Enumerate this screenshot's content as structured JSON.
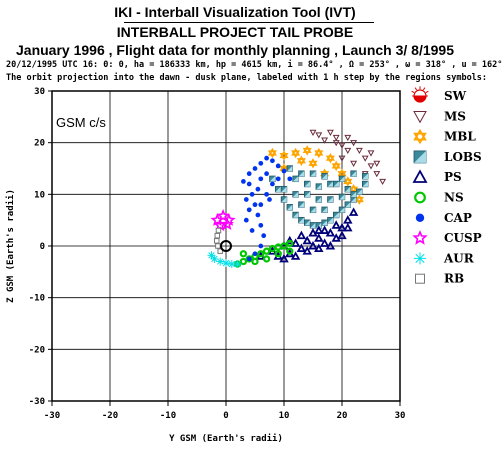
{
  "header": {
    "title": "IKI - Interball Visualization Tool (IVT)",
    "subtitle": "INTERBALL PROJECT TAIL PROBE",
    "plan": "January 1996 ,  Flight data for monthly planning ,   Launch  3/ 8/1995",
    "orbit_info": "20/12/1995 UTC 16: 0: 0, ha = 186333 km, hp =   4615 km, i = 86.4° , Ω = 253° , ω = 318° , u = 162°",
    "description": "The orbit projection into the dawn - dusk plane, labeled with 1 h step by the regions symbols:"
  },
  "colors": {
    "SW": "#e00000",
    "MS": "#6a2a3a",
    "MBL": "#ffa500",
    "LOBS": "#3a8a9a",
    "PS": "#00007a",
    "NS": "#00c800",
    "CAP": "#0033ee",
    "CUSP": "#ff00ff",
    "AUR": "#00e0e8",
    "RB": "#777777"
  },
  "chart_data": {
    "type": "scatter",
    "coord_system_label": "GSM c/s",
    "xlabel": "Y GSM (Earth's radii)",
    "ylabel": "Z GSM (Earth's radii)",
    "xlim": [
      -30,
      30
    ],
    "ylim": [
      -30,
      30
    ],
    "xticks": [
      -30,
      -20,
      -10,
      0,
      10,
      20,
      30
    ],
    "yticks": [
      -30,
      -20,
      -10,
      0,
      10,
      20,
      30
    ],
    "grid": true,
    "legend_position": "right",
    "earth_marker": [
      0,
      0
    ],
    "series": [
      {
        "name": "SW",
        "symbol": "sw-icon",
        "points": []
      },
      {
        "name": "MS",
        "symbol": "triangle-down-icon",
        "points": [
          [
            15,
            22
          ],
          [
            16,
            21.5
          ],
          [
            17,
            20.5
          ],
          [
            18,
            22
          ],
          [
            19,
            21
          ],
          [
            20,
            19.5
          ],
          [
            21,
            18.5
          ],
          [
            22,
            20
          ],
          [
            23,
            18.5
          ],
          [
            24,
            17
          ],
          [
            25,
            15.5
          ],
          [
            26,
            14
          ],
          [
            27,
            12.5
          ],
          [
            26,
            16
          ],
          [
            25,
            18
          ],
          [
            20,
            17
          ],
          [
            22,
            16
          ],
          [
            19,
            20
          ],
          [
            21,
            21
          ],
          [
            24,
            14
          ]
        ]
      },
      {
        "name": "MBL",
        "symbol": "star-of-david-icon",
        "points": [
          [
            8,
            18
          ],
          [
            10,
            17.5
          ],
          [
            12,
            18
          ],
          [
            14,
            18.5
          ],
          [
            16,
            18
          ],
          [
            18,
            17
          ],
          [
            19,
            15.5
          ],
          [
            20,
            14
          ],
          [
            21,
            12.5
          ],
          [
            22,
            11
          ],
          [
            15,
            16
          ],
          [
            13,
            16.5
          ],
          [
            17,
            14
          ],
          [
            23,
            9
          ],
          [
            10,
            15
          ]
        ]
      },
      {
        "name": "LOBS",
        "symbol": "square-icon",
        "points": [
          [
            8,
            13
          ],
          [
            9,
            11
          ],
          [
            10,
            9
          ],
          [
            11,
            7.5
          ],
          [
            12,
            6
          ],
          [
            13,
            5
          ],
          [
            14,
            4.5
          ],
          [
            15,
            4
          ],
          [
            16,
            4
          ],
          [
            17,
            4.5
          ],
          [
            18,
            5
          ],
          [
            19,
            6
          ],
          [
            20,
            7
          ],
          [
            21,
            8
          ],
          [
            22,
            9
          ],
          [
            23,
            10.5
          ],
          [
            24,
            12
          ],
          [
            24,
            13.5
          ],
          [
            22,
            14
          ],
          [
            20,
            13
          ],
          [
            18,
            12
          ],
          [
            16,
            11.5
          ],
          [
            14,
            12
          ],
          [
            12,
            13
          ],
          [
            11,
            15
          ],
          [
            13,
            14
          ],
          [
            15,
            14
          ],
          [
            17,
            13.5
          ],
          [
            19,
            12
          ],
          [
            21,
            11
          ],
          [
            10,
            11
          ],
          [
            12,
            10
          ],
          [
            14,
            10
          ],
          [
            16,
            9
          ],
          [
            18,
            9
          ],
          [
            20,
            9.5
          ],
          [
            22,
            10
          ],
          [
            13,
            8
          ],
          [
            15,
            7
          ],
          [
            17,
            7
          ]
        ]
      },
      {
        "name": "PS",
        "symbol": "triangle-up-icon",
        "points": [
          [
            6,
            -2
          ],
          [
            8,
            -1
          ],
          [
            10,
            0
          ],
          [
            12,
            0.5
          ],
          [
            14,
            1
          ],
          [
            16,
            1.5
          ],
          [
            18,
            2.5
          ],
          [
            20,
            3.5
          ],
          [
            21,
            5
          ],
          [
            22,
            6.5
          ],
          [
            9,
            -2
          ],
          [
            11,
            -1.5
          ],
          [
            13,
            -0.5
          ],
          [
            15,
            0
          ],
          [
            17,
            0.5
          ],
          [
            19,
            1.5
          ],
          [
            20,
            2
          ],
          [
            18,
            0
          ],
          [
            16,
            -0.5
          ],
          [
            14,
            -1
          ],
          [
            12,
            -2
          ],
          [
            10,
            -2.5
          ],
          [
            13,
            2
          ],
          [
            15,
            2.5
          ],
          [
            17,
            3
          ],
          [
            19,
            4
          ],
          [
            11,
            1
          ],
          [
            21,
            3.5
          ],
          [
            16,
            3
          ]
        ]
      },
      {
        "name": "NS",
        "symbol": "circle-icon",
        "points": [
          [
            2,
            -3.5
          ],
          [
            3,
            -3
          ],
          [
            4,
            -2.5
          ],
          [
            5,
            -2
          ],
          [
            6,
            -1.5
          ],
          [
            7,
            -1
          ],
          [
            8,
            -0.5
          ],
          [
            9,
            -0.2
          ],
          [
            10,
            0
          ],
          [
            11,
            0.5
          ],
          [
            3,
            -1.5
          ],
          [
            5,
            -3
          ],
          [
            7,
            -2.5
          ],
          [
            9,
            -1.5
          ],
          [
            11,
            -1
          ]
        ]
      },
      {
        "name": "CAP",
        "symbol": "disc-icon",
        "points": [
          [
            4,
            14
          ],
          [
            4,
            12
          ],
          [
            4.5,
            10
          ],
          [
            5,
            8
          ],
          [
            5.5,
            6
          ],
          [
            6,
            4
          ],
          [
            6.5,
            2
          ],
          [
            6,
            0
          ],
          [
            5,
            -1.5
          ],
          [
            4,
            -2.5
          ],
          [
            5,
            15
          ],
          [
            6,
            16
          ],
          [
            7,
            17
          ],
          [
            8,
            16.5
          ],
          [
            9,
            15.5
          ],
          [
            10,
            14.5
          ],
          [
            8,
            12
          ],
          [
            7,
            10
          ],
          [
            6,
            8
          ],
          [
            3,
            12.5
          ],
          [
            3.5,
            9
          ],
          [
            4,
            7
          ],
          [
            3.5,
            5
          ],
          [
            4.5,
            3
          ],
          [
            7,
            14
          ],
          [
            9,
            13
          ],
          [
            11,
            13
          ],
          [
            6,
            13
          ],
          [
            5.5,
            11
          ],
          [
            7.5,
            9
          ]
        ]
      },
      {
        "name": "CUSP",
        "symbol": "star-icon",
        "points": [
          [
            -1.5,
            5
          ],
          [
            -0.5,
            5.8
          ],
          [
            0.5,
            5
          ],
          [
            -1,
            4
          ],
          [
            0.2,
            4.2
          ]
        ]
      },
      {
        "name": "AUR",
        "symbol": "asterisk-icon",
        "points": [
          [
            -2,
            -2.5
          ],
          [
            -1,
            -3
          ],
          [
            0,
            -3.3
          ],
          [
            1,
            -3.5
          ],
          [
            2,
            -3.5
          ],
          [
            -2.5,
            -1.8
          ]
        ]
      },
      {
        "name": "RB",
        "symbol": "hollow-square-icon",
        "points": [
          [
            -1.5,
            2
          ],
          [
            -1.6,
            1
          ],
          [
            -1.4,
            0
          ],
          [
            -1.3,
            3
          ],
          [
            -1,
            -1
          ]
        ]
      }
    ]
  }
}
